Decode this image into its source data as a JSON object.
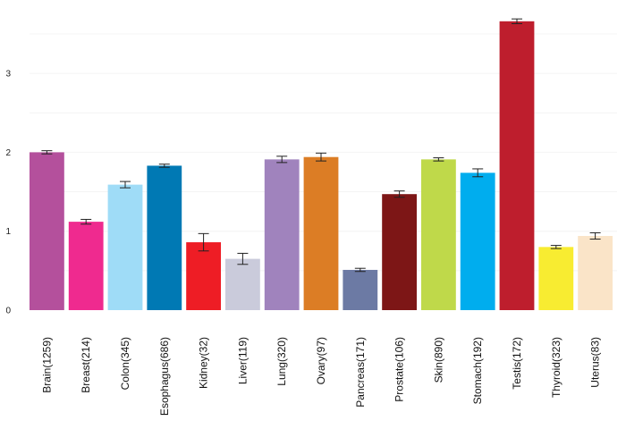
{
  "chart_data": {
    "type": "bar",
    "title": "",
    "xlabel": "",
    "ylabel": "",
    "ylim": [
      0,
      3.8
    ],
    "yticks": [
      0,
      1,
      2,
      3
    ],
    "grid": true,
    "categories": [
      "Brain(1259)",
      "Breast(214)",
      "Colon(345)",
      "Esophagus(686)",
      "Kidney(32)",
      "Liver(119)",
      "Lung(320)",
      "Ovary(97)",
      "Pancreas(171)",
      "Prostate(106)",
      "Skin(890)",
      "Stomach(192)",
      "Testis(172)",
      "Thyroid(323)",
      "Uterus(83)"
    ],
    "values": [
      2.0,
      1.12,
      1.59,
      1.83,
      0.86,
      0.65,
      1.91,
      1.94,
      0.51,
      1.47,
      1.91,
      1.74,
      3.66,
      0.8,
      0.94
    ],
    "errors": [
      0.02,
      0.03,
      0.04,
      0.02,
      0.11,
      0.07,
      0.04,
      0.05,
      0.02,
      0.04,
      0.02,
      0.05,
      0.03,
      0.02,
      0.04
    ],
    "colors": [
      "#b4509c",
      "#ef2a8f",
      "#9fdcf7",
      "#0079b4",
      "#ee1d25",
      "#cacbdb",
      "#a083bd",
      "#dc7d25",
      "#6c7aa4",
      "#7d1616",
      "#bfd94a",
      "#00adee",
      "#be1e2d",
      "#f8ec31",
      "#fae4c8"
    ]
  }
}
